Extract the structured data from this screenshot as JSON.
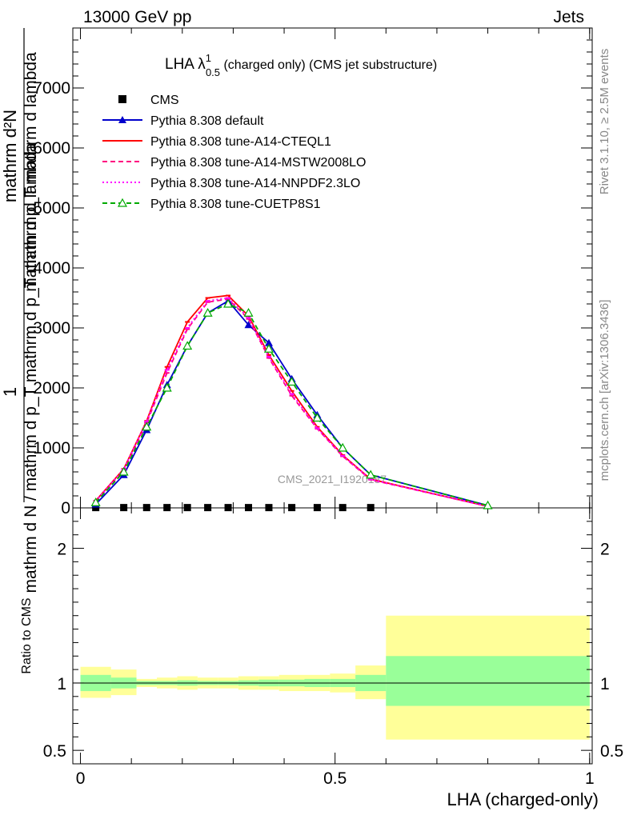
{
  "header": {
    "left": "13000 GeV pp",
    "right": "Jets"
  },
  "side_labels": {
    "rivet": "Rivet 3.1.10, ≥ 2.5M events",
    "mcplots": "mcplots.cern.ch [arXiv:1306.3436]"
  },
  "watermark": "CMS_2021_I1920187",
  "title": {
    "main": "LHA λ",
    "sup": "1",
    "sub": "0.5",
    "rest": " (charged only) (CMS jet substructure)"
  },
  "y_axis_label": {
    "line1": "1",
    "line2": "mathrm d N / mathrm d p_T mathrm d p_T mathrm d lambda",
    "line3": "mathrm d²N",
    "line4": "mathrm d p_T mathrm d lambda"
  },
  "ratio_axis_label": "Ratio to CMS",
  "x_axis_label": "LHA (charged-only)",
  "colors": {
    "cms": "#000000",
    "default": "#0000cc",
    "cteql1": "#ff0000",
    "mstw": "#ff0080",
    "nnpdf": "#ff00ff",
    "cuetp8s1": "#00aa00",
    "band_inner": "#99ff99",
    "band_outer": "#ffff99"
  },
  "chart_data": {
    "type": "line",
    "x": [
      0.03,
      0.085,
      0.13,
      0.17,
      0.21,
      0.25,
      0.29,
      0.33,
      0.37,
      0.415,
      0.465,
      0.515,
      0.57,
      0.8
    ],
    "bin_edges": [
      0.0,
      0.06,
      0.11,
      0.15,
      0.19,
      0.23,
      0.27,
      0.31,
      0.35,
      0.39,
      0.44,
      0.49,
      0.54,
      0.6,
      1.0
    ],
    "xlim": [
      -0.015,
      1.005
    ],
    "xticks": [
      0,
      0.5,
      1
    ],
    "xtick_labels": [
      "0",
      "0.5",
      "1"
    ],
    "ylim": [
      0,
      8000
    ],
    "yticks": [
      0,
      1000,
      2000,
      3000,
      4000,
      5000,
      6000,
      7000
    ],
    "ytick_labels": [
      "0",
      "1000",
      "2000",
      "3000",
      "4000",
      "5000",
      "6000",
      "7000"
    ],
    "series": [
      {
        "name": "CMS",
        "key": "cms",
        "style": "marker",
        "values": [
          5,
          5,
          5,
          5,
          5,
          5,
          5,
          5,
          5,
          5,
          5,
          5,
          5,
          null
        ]
      },
      {
        "name": "Pythia 8.308 default",
        "key": "default",
        "style": "solid-triangle",
        "values": [
          60,
          550,
          1300,
          2050,
          2700,
          3250,
          3450,
          3050,
          2750,
          2150,
          1550,
          1000,
          550,
          40
        ]
      },
      {
        "name": "Pythia 8.308 tune-A14-CTEQL1",
        "key": "cteql1",
        "style": "solid",
        "values": [
          120,
          650,
          1450,
          2350,
          3100,
          3500,
          3540,
          3200,
          2550,
          1950,
          1350,
          880,
          480,
          25
        ]
      },
      {
        "name": "Pythia 8.308 tune-A14-MSTW2008LO",
        "key": "mstw",
        "style": "dashed",
        "values": [
          110,
          620,
          1420,
          2250,
          2980,
          3430,
          3480,
          3150,
          2500,
          1870,
          1320,
          860,
          470,
          25
        ]
      },
      {
        "name": "Pythia 8.308 tune-A14-NNPDF2.3LO",
        "key": "nnpdf",
        "style": "dotted",
        "values": [
          115,
          640,
          1440,
          2300,
          3000,
          3450,
          3500,
          3170,
          2520,
          1900,
          1330,
          870,
          475,
          25
        ]
      },
      {
        "name": "Pythia 8.308 tune-CUETP8S1",
        "key": "cuetp8s1",
        "style": "dashed-open-triangle",
        "values": [
          90,
          600,
          1350,
          2000,
          2700,
          3250,
          3400,
          3250,
          2650,
          2100,
          1500,
          1000,
          550,
          40
        ]
      }
    ],
    "ratio": {
      "ylim": [
        0.4,
        2.3
      ],
      "yticks": [
        0.5,
        1,
        2
      ],
      "ytick_labels": [
        "0.5",
        "1",
        "2"
      ],
      "inner_band": [
        [
          0.94,
          1.06
        ],
        [
          0.96,
          1.04
        ],
        [
          0.985,
          1.015
        ],
        [
          0.985,
          1.015
        ],
        [
          0.98,
          1.02
        ],
        [
          0.985,
          1.015
        ],
        [
          0.985,
          1.015
        ],
        [
          0.98,
          1.02
        ],
        [
          0.975,
          1.025
        ],
        [
          0.975,
          1.025
        ],
        [
          0.97,
          1.03
        ],
        [
          0.97,
          1.03
        ],
        [
          0.94,
          1.06
        ],
        [
          0.83,
          1.2
        ]
      ],
      "outer_band": [
        [
          0.89,
          1.12
        ],
        [
          0.91,
          1.1
        ],
        [
          0.97,
          1.03
        ],
        [
          0.96,
          1.04
        ],
        [
          0.95,
          1.05
        ],
        [
          0.96,
          1.04
        ],
        [
          0.96,
          1.04
        ],
        [
          0.95,
          1.05
        ],
        [
          0.95,
          1.05
        ],
        [
          0.94,
          1.06
        ],
        [
          0.94,
          1.06
        ],
        [
          0.93,
          1.07
        ],
        [
          0.88,
          1.13
        ],
        [
          0.58,
          1.5
        ]
      ]
    }
  }
}
